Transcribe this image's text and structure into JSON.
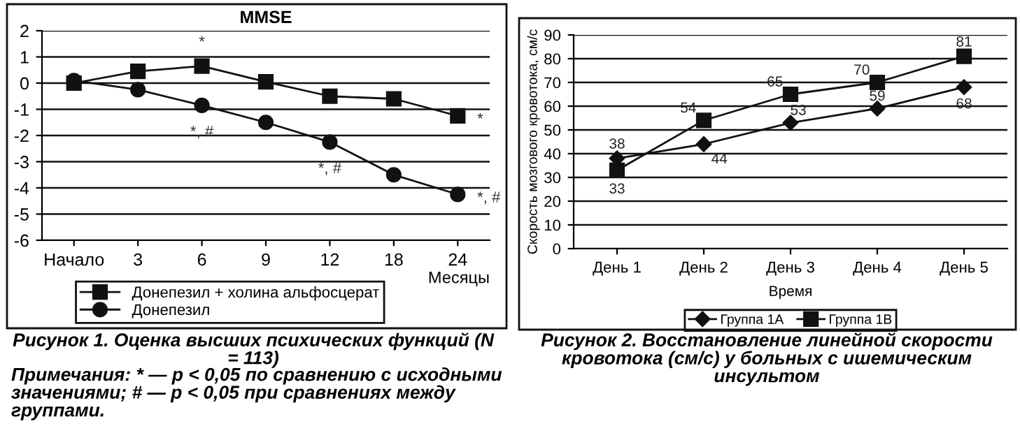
{
  "chart_data": [
    {
      "type": "line",
      "title": "MMSE",
      "xlabel": "Месяцы",
      "categories": [
        "Начало",
        "3",
        "6",
        "9",
        "12",
        "18",
        "24"
      ],
      "series": [
        {
          "name": "Донепезил + холина альфосцерат",
          "color": "#111111",
          "marker": "square",
          "values": [
            0.0,
            0.45,
            0.65,
            0.05,
            -0.5,
            -0.6,
            -1.25
          ]
        },
        {
          "name": "Донепезил",
          "color": "#111111",
          "marker": "circle",
          "values": [
            0.1,
            -0.25,
            -0.85,
            -1.5,
            -2.25,
            -3.5,
            -4.25
          ]
        }
      ],
      "ylim": [
        -6,
        2
      ],
      "yticks": [
        -6,
        -5,
        -4,
        -3,
        -2,
        -1,
        0,
        1,
        2
      ],
      "grid": "y",
      "legend": "bottom",
      "line_style": "solid",
      "annotations": [
        {
          "text": "*",
          "x": "6",
          "y": 0.65
        },
        {
          "text": "*",
          "x": "24",
          "y": -1.25
        },
        {
          "text": "*, #",
          "x": "6",
          "y": -0.85
        },
        {
          "text": "*, #",
          "x": "12",
          "y": -2.25
        },
        {
          "text": "*, #",
          "x": "24",
          "y": -4.25
        },
        "Рисунок 1. Оценка высших психических функций (N = 113)",
        "Примечания: * — p < 0,05 по сравнению с исходными значениями; # — p < 0,05 при сравнениях между группами."
      ]
    },
    {
      "type": "line",
      "xlabel": "Время",
      "ylabel": "Скорость мозгового кровотока, см/с",
      "categories": [
        "День 1",
        "День 2",
        "День 3",
        "День 4",
        "День 5"
      ],
      "series": [
        {
          "name": "Группа 1А",
          "color": "#111111",
          "marker": "diamond",
          "values": [
            38,
            44,
            53,
            59,
            68
          ]
        },
        {
          "name": "Группа 1В",
          "color": "#111111",
          "marker": "square",
          "values": [
            33,
            54,
            65,
            70,
            81
          ]
        }
      ],
      "ylim": [
        0,
        90
      ],
      "yticks": [
        0,
        10,
        20,
        30,
        40,
        50,
        60,
        70,
        80,
        90
      ],
      "grid": "y",
      "legend": "bottom",
      "line_style": "solid",
      "data_labels": true,
      "annotations": [
        "Рисунок 2. Восстановление линейной скорости кровотока (см/с) у больных с ишемическим инсультом"
      ]
    }
  ]
}
